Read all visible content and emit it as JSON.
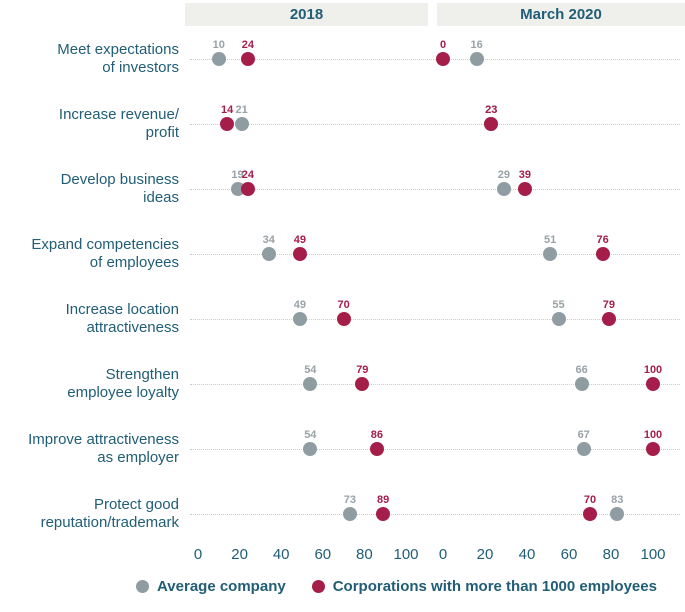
{
  "header": {
    "period1": "2018",
    "period2": "March 2020"
  },
  "colors": {
    "average": "#8f9da3",
    "average_label": "#98a2a7",
    "corporations": "#a51e4a",
    "teal_text": "#215e76",
    "band_background": "#efefec",
    "dotted_line": "#c8cdcf"
  },
  "legend": {
    "items": [
      {
        "label": "Average company",
        "color_key": "average"
      },
      {
        "label": "Corporations with more than 1000 employees",
        "color_key": "corporations"
      }
    ]
  },
  "chart_data": {
    "type": "scatter",
    "subtype": "dot-plot",
    "title": "",
    "xlabel": "",
    "ylabel": "",
    "xlim": [
      0,
      100
    ],
    "ticks": [
      0,
      20,
      40,
      60,
      80,
      100
    ],
    "grid": "dotted-horizontal",
    "legend_position": "bottom",
    "categories": [
      [
        "Meet expectations",
        "of investors"
      ],
      [
        "Increase revenue/",
        "profit"
      ],
      [
        "Develop business",
        "ideas"
      ],
      [
        "Expand competencies",
        "of employees"
      ],
      [
        "Increase location",
        "attractiveness"
      ],
      [
        "Strengthen",
        "employee loyalty"
      ],
      [
        "Improve attractiveness",
        "as employer"
      ],
      [
        "Protect good",
        "reputation/trademark"
      ]
    ],
    "panels": [
      {
        "title": "2018",
        "series": [
          {
            "name": "Average company",
            "color_key": "average",
            "values": [
              10,
              21,
              19,
              34,
              49,
              54,
              54,
              73
            ]
          },
          {
            "name": "Corporations with more than 1000 employees",
            "color_key": "corporations",
            "values": [
              24,
              14,
              24,
              49,
              70,
              79,
              86,
              89
            ]
          }
        ]
      },
      {
        "title": "March 2020",
        "series": [
          {
            "name": "Average company",
            "color_key": "average",
            "values": [
              16,
              23,
              29,
              51,
              55,
              66,
              67,
              83
            ]
          },
          {
            "name": "Corporations with more than 1000 employees",
            "color_key": "corporations",
            "values": [
              0,
              23,
              39,
              76,
              79,
              100,
              100,
              70
            ]
          }
        ]
      }
    ]
  }
}
